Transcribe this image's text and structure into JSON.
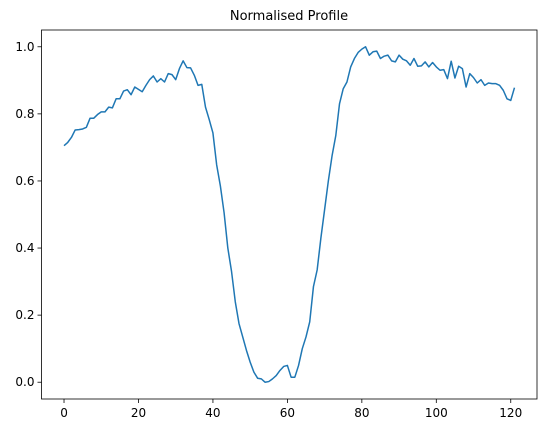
{
  "chart_data": {
    "type": "line",
    "title": "Normalised Profile",
    "x": [
      0,
      1,
      2,
      3,
      4,
      5,
      6,
      7,
      8,
      9,
      10,
      11,
      12,
      13,
      14,
      15,
      16,
      17,
      18,
      19,
      20,
      21,
      22,
      23,
      24,
      25,
      26,
      27,
      28,
      29,
      30,
      31,
      32,
      33,
      34,
      35,
      36,
      37,
      38,
      39,
      40,
      41,
      42,
      43,
      44,
      45,
      46,
      47,
      48,
      49,
      50,
      51,
      52,
      53,
      54,
      55,
      56,
      57,
      58,
      59,
      60,
      61,
      62,
      63,
      64,
      65,
      66,
      67,
      68,
      69,
      70,
      71,
      72,
      73,
      74,
      75,
      76,
      77,
      78,
      79,
      80,
      81,
      82,
      83,
      84,
      85,
      86,
      87,
      88,
      89,
      90,
      91,
      92,
      93,
      94,
      95,
      96,
      97,
      98,
      99,
      100,
      101,
      102,
      103,
      104,
      105,
      106,
      107,
      108,
      109,
      110,
      111,
      112,
      113,
      114,
      115,
      116,
      117,
      118,
      119,
      120,
      121
    ],
    "series": [
      {
        "color": "#1f77b4",
        "values": [
          0.705,
          0.715,
          0.73,
          0.752,
          0.753,
          0.755,
          0.76,
          0.787,
          0.787,
          0.798,
          0.806,
          0.806,
          0.82,
          0.818,
          0.845,
          0.845,
          0.868,
          0.872,
          0.857,
          0.88,
          0.873,
          0.866,
          0.885,
          0.902,
          0.913,
          0.895,
          0.905,
          0.895,
          0.92,
          0.917,
          0.902,
          0.935,
          0.958,
          0.938,
          0.937,
          0.915,
          0.885,
          0.888,
          0.82,
          0.783,
          0.743,
          0.648,
          0.585,
          0.505,
          0.4,
          0.33,
          0.24,
          0.175,
          0.135,
          0.095,
          0.06,
          0.03,
          0.012,
          0.01,
          0.0,
          0.002,
          0.01,
          0.02,
          0.035,
          0.047,
          0.05,
          0.015,
          0.015,
          0.05,
          0.1,
          0.135,
          0.18,
          0.285,
          0.335,
          0.43,
          0.515,
          0.6,
          0.675,
          0.735,
          0.83,
          0.875,
          0.895,
          0.94,
          0.965,
          0.983,
          0.993,
          1.0,
          0.975,
          0.985,
          0.987,
          0.965,
          0.972,
          0.975,
          0.958,
          0.955,
          0.975,
          0.963,
          0.958,
          0.945,
          0.965,
          0.942,
          0.943,
          0.955,
          0.94,
          0.953,
          0.94,
          0.93,
          0.932,
          0.905,
          0.957,
          0.907,
          0.942,
          0.935,
          0.88,
          0.92,
          0.908,
          0.892,
          0.902,
          0.885,
          0.892,
          0.89,
          0.89,
          0.885,
          0.87,
          0.845,
          0.84,
          0.878
        ]
      }
    ],
    "xlim": [
      -6.05,
      127.05
    ],
    "xticks": [
      0,
      20,
      40,
      60,
      80,
      100,
      120
    ],
    "ylim": [
      -0.05,
      1.05
    ],
    "yticks": [
      {
        "value": 0,
        "label": "0.0"
      },
      0.2,
      0.4,
      0.6,
      0.8,
      {
        "value": 1,
        "label": "1.0"
      }
    ],
    "grid": false
  }
}
